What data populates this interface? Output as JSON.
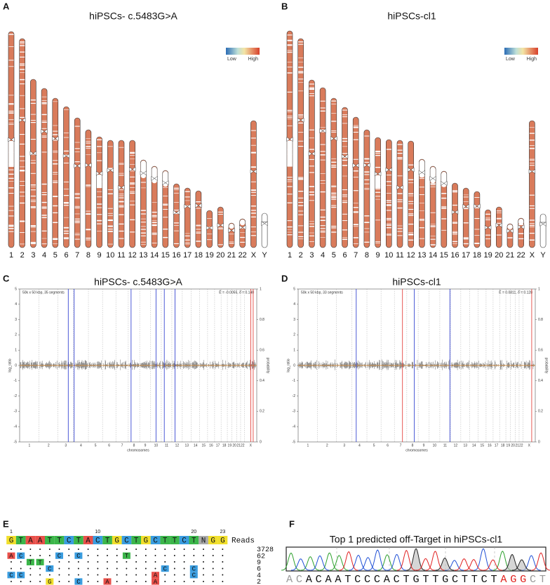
{
  "karyotypes": [
    {
      "letter": "A",
      "title": "hiPSCs- c.5483G>A",
      "legend_low": "Low",
      "legend_high": "High",
      "chromosomes": [
        "1",
        "2",
        "3",
        "4",
        "5",
        "6",
        "7",
        "8",
        "9",
        "10",
        "11",
        "12",
        "13",
        "14",
        "15",
        "16",
        "17",
        "18",
        "19",
        "20",
        "21",
        "22",
        "X",
        "Y"
      ]
    },
    {
      "letter": "B",
      "title": "hiPSCs-cl1",
      "legend_low": "Low",
      "legend_high": "High",
      "chromosomes": [
        "1",
        "2",
        "3",
        "4",
        "5",
        "6",
        "7",
        "8",
        "9",
        "10",
        "11",
        "12",
        "13",
        "14",
        "15",
        "16",
        "17",
        "18",
        "19",
        "20",
        "21",
        "22",
        "X",
        "Y"
      ]
    }
  ],
  "cnv_plots": [
    {
      "letter": "C",
      "title": "hiPSCs- c.5483G>A",
      "info_left": "50k x 50 kbp, 35 segments",
      "info_right": "Ê = -0.0055, δ̂ = 0.140",
      "y_label": "log_ratio",
      "y2_label": "probability",
      "x_label": "chromosomes",
      "yticks": [
        5,
        4,
        3,
        2,
        1,
        0,
        -1,
        -2,
        -3,
        -4,
        -5
      ],
      "y2ticks": [
        1,
        0.8,
        0.6,
        0.4,
        0.2,
        0
      ],
      "xticks": [
        "1",
        "2",
        "3",
        "4",
        "5",
        "6",
        "7",
        "8",
        "9",
        "10",
        "11",
        "12",
        "13",
        "14",
        "15",
        "16",
        "17",
        "18",
        "19",
        "20",
        "21",
        "22",
        "X"
      ]
    },
    {
      "letter": "D",
      "title": "hiPSCs-cl1",
      "info_left": "50k x 50 kbp, 33 segments",
      "info_right": "Ê = 0.0811, δ̂ = 0.128",
      "y_label": "log_ratio",
      "y2_label": "probability",
      "x_label": "chromosomes",
      "yticks": [
        5,
        4,
        3,
        2,
        1,
        0,
        -1,
        -2,
        -3,
        -4,
        -5
      ],
      "y2ticks": [
        1,
        0.8,
        0.6,
        0.4,
        0.2,
        0
      ],
      "xticks": [
        "1",
        "2",
        "3",
        "4",
        "5",
        "6",
        "7",
        "8",
        "9",
        "10",
        "11",
        "12",
        "13",
        "14",
        "15",
        "16",
        "17",
        "18",
        "19",
        "20",
        "21",
        "22",
        "X"
      ]
    }
  ],
  "alignment": {
    "letter": "E",
    "reads_header": "Reads",
    "position_labels": [
      1,
      10,
      20,
      23
    ],
    "reference": [
      "G",
      "T",
      "A",
      "A",
      "T",
      "T",
      "C",
      "T",
      "A",
      "C",
      "T",
      "G",
      "C",
      "T",
      "G",
      "C",
      "T",
      "T",
      "C",
      "T",
      "N",
      "G",
      "G"
    ],
    "rows": [
      {
        "reads": 3728,
        "bases": [
          "•",
          "•",
          "•",
          "•",
          "•",
          "•",
          "•",
          "•",
          "•",
          "•",
          "•",
          "•",
          "•",
          "•",
          "•",
          "•",
          "•",
          "•",
          "•",
          "•",
          "•",
          "•",
          "•"
        ]
      },
      {
        "reads": 62,
        "bases": [
          "A",
          "C",
          "•",
          "•",
          "•",
          "C",
          "•",
          "C",
          "•",
          "•",
          "•",
          "•",
          "T",
          "•",
          "•",
          "•",
          "•",
          "•",
          "•",
          "•",
          "•",
          "•",
          "•"
        ]
      },
      {
        "reads": 9,
        "bases": [
          "•",
          "•",
          "T",
          "T",
          "•",
          "•",
          "•",
          "•",
          "•",
          "•",
          "•",
          "•",
          "•",
          "•",
          "•",
          "•",
          "•",
          "•",
          "•",
          "•",
          "•",
          "•",
          "•"
        ]
      },
      {
        "reads": 6,
        "bases": [
          "•",
          "•",
          "•",
          "•",
          "C",
          "•",
          "•",
          "•",
          "•",
          "•",
          "•",
          "•",
          "•",
          "•",
          "•",
          "•",
          "C",
          "•",
          "•",
          "C",
          "•",
          "•",
          "•"
        ]
      },
      {
        "reads": 4,
        "bases": [
          "C",
          "C",
          "•",
          "•",
          "•",
          "•",
          "•",
          "•",
          "•",
          "•",
          "•",
          "•",
          "•",
          "•",
          "•",
          "A",
          "•",
          "•",
          "•",
          "C",
          "•",
          "•",
          "•"
        ]
      },
      {
        "reads": 2,
        "bases": [
          "•",
          "•",
          "•",
          "•",
          "G",
          "•",
          "•",
          "C",
          "•",
          "•",
          "A",
          "•",
          "•",
          "•",
          "•",
          "A",
          "•",
          "•",
          "•",
          "•",
          "•",
          "•",
          "•"
        ]
      }
    ]
  },
  "off_target": {
    "letter": "F",
    "title": "Top 1 predicted off-Target in hiPSCs-cl1",
    "sequence": [
      {
        "text": "AC",
        "color": "#9a9a9a"
      },
      {
        "text": "ACAATCCCACTGTTGCTTCT",
        "color": "#111111"
      },
      {
        "text": "AGG",
        "color": "#e0201b"
      },
      {
        "text": "CT",
        "color": "#9a9a9a"
      }
    ]
  }
}
